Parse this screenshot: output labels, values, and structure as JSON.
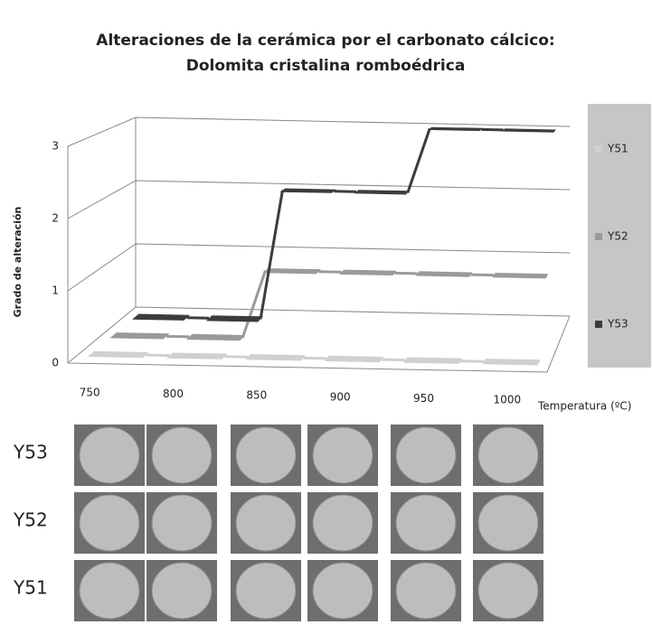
{
  "chart_data": {
    "type": "line3d",
    "title": "Alteraciones de la cerámica por el carbonato cálcico:",
    "subtitle": "Dolomita cristalina romboédrica",
    "y_label": "Grado de alteración",
    "x_label": "Temperatura (ºC)",
    "categories": [
      "750",
      "800",
      "850",
      "900",
      "950",
      "1000"
    ],
    "series": [
      {
        "name": "Y51",
        "color": "#d0d0d0",
        "values": [
          0,
          0,
          0,
          0,
          0,
          0
        ]
      },
      {
        "name": "Y52",
        "color": "#9a9a9a",
        "values": [
          0,
          0,
          1,
          1,
          1,
          1
        ]
      },
      {
        "name": "Y53",
        "color": "#3c3c3c",
        "values": [
          0,
          0,
          2,
          2,
          3,
          3
        ]
      }
    ],
    "ylim": [
      0,
      3
    ],
    "yticks": [
      0,
      1,
      2,
      3
    ],
    "grid": true
  },
  "photos": {
    "rows": [
      "Y53",
      "Y52",
      "Y51"
    ]
  }
}
